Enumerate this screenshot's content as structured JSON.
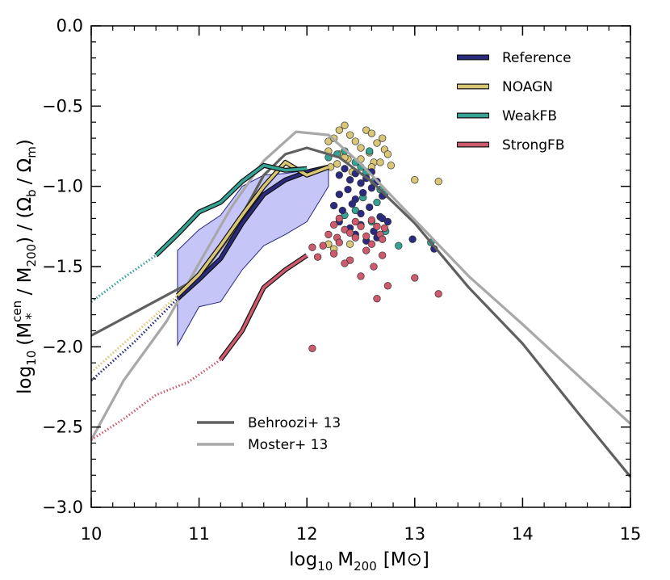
{
  "chart_data": {
    "type": "line",
    "x_axis": {
      "range": [
        10,
        15
      ],
      "ticks": [
        10,
        11,
        12,
        13,
        14,
        15
      ],
      "tick_labels": [
        "10",
        "11",
        "12",
        "13",
        "14",
        "15"
      ],
      "label_parts": {
        "base": "log",
        "base_sub": "10",
        "var": "M",
        "var_sub": "200",
        "unit": "[M",
        "unit_symbol": "⊙",
        "unit_close": "]"
      }
    },
    "y_axis": {
      "range": [
        -3.0,
        0.0
      ],
      "ticks": [
        -3.0,
        -2.5,
        -2.0,
        -1.5,
        -1.0,
        -0.5,
        0.0
      ],
      "tick_labels": [
        "−3.0",
        "−2.5",
        "−2.0",
        "−1.5",
        "−1.0",
        "−0.5",
        "0.0"
      ],
      "label_parts": {
        "open": "log",
        "open_sub": "10",
        "p1": "(M",
        "p1_sup": "cen",
        "p1_sub": "*",
        "p2": "/ M",
        "p2_sub": "200",
        "p3": ") / (Ω",
        "p3_sub": "b",
        "p4": "/ Ω",
        "p4_sub": "m",
        "p5": ")"
      }
    },
    "legend_top_right": [
      {
        "name": "Reference",
        "color": "#2a2a7e"
      },
      {
        "name": "NOAGN",
        "color": "#d9c677"
      },
      {
        "name": "WeakFB",
        "color": "#35a294"
      },
      {
        "name": "StrongFB",
        "color": "#cd5a6d"
      }
    ],
    "legend_bottom_left": [
      {
        "name": "Behroozi+ 13",
        "color": "#606060"
      },
      {
        "name": "Moster+ 13",
        "color": "#a8a8a8"
      }
    ],
    "shaded_band": {
      "color": "#8c8cf0",
      "x": [
        10.8,
        11.0,
        11.2,
        11.4,
        11.6,
        11.8,
        12.0,
        12.2
      ],
      "upper": [
        -1.4,
        -1.27,
        -1.18,
        -1.0,
        -0.93,
        -0.92,
        -0.9,
        -0.88
      ],
      "lower": [
        -1.99,
        -1.75,
        -1.72,
        -1.52,
        -1.37,
        -1.3,
        -1.22,
        -1.0
      ]
    },
    "series": [
      {
        "name": "Behroozi+ 13",
        "color": "#606060",
        "style": "solid",
        "x": [
          10.0,
          10.5,
          11.0,
          11.3,
          11.6,
          11.8,
          12.0,
          12.3,
          12.6,
          13.0,
          13.5,
          14.0,
          14.5,
          15.0
        ],
        "y": [
          -1.93,
          -1.75,
          -1.57,
          -1.3,
          -0.93,
          -0.8,
          -0.76,
          -0.82,
          -0.97,
          -1.23,
          -1.63,
          -1.98,
          -2.4,
          -2.81
        ]
      },
      {
        "name": "Moster+ 13",
        "color": "#a8a8a8",
        "style": "solid",
        "x": [
          10.0,
          10.3,
          10.7,
          11.0,
          11.3,
          11.6,
          11.9,
          12.2,
          12.5,
          13.0,
          13.5,
          14.0,
          14.5,
          15.0
        ],
        "y": [
          -2.58,
          -2.21,
          -1.84,
          -1.48,
          -1.13,
          -0.84,
          -0.66,
          -0.68,
          -0.86,
          -1.21,
          -1.56,
          -1.86,
          -2.17,
          -2.48
        ]
      },
      {
        "name": "Reference",
        "color": "#2a2a7e",
        "style": "solid",
        "x": [
          10.8,
          11.0,
          11.2,
          11.4,
          11.6,
          11.8,
          12.0,
          12.2
        ],
        "y": [
          -1.7,
          -1.58,
          -1.45,
          -1.23,
          -1.05,
          -0.96,
          -0.91,
          -0.88
        ]
      },
      {
        "name": "NOAGN",
        "color": "#d9c677",
        "style": "solid",
        "x": [
          10.8,
          11.0,
          11.2,
          11.4,
          11.6,
          11.8,
          12.0,
          12.2
        ],
        "y": [
          -1.68,
          -1.55,
          -1.37,
          -1.18,
          -1.0,
          -0.85,
          -0.93,
          -0.88
        ]
      },
      {
        "name": "WeakFB",
        "color": "#35a294",
        "style": "solid",
        "x": [
          10.6,
          10.8,
          11.0,
          11.2,
          11.4,
          11.6,
          11.8,
          12.0
        ],
        "y": [
          -1.43,
          -1.3,
          -1.16,
          -1.1,
          -0.97,
          -0.87,
          -0.9,
          -0.89
        ]
      },
      {
        "name": "StrongFB",
        "color": "#cd5a6d",
        "style": "solid",
        "x": [
          11.2,
          11.4,
          11.6,
          11.8,
          12.0
        ],
        "y": [
          -2.08,
          -1.9,
          -1.63,
          -1.52,
          -1.43
        ]
      },
      {
        "name": "Reference",
        "color": "#2a2a7e",
        "style": "dotted",
        "x": [
          10.0,
          10.4,
          10.8
        ],
        "y": [
          -2.21,
          -1.97,
          -1.7
        ]
      },
      {
        "name": "NOAGN",
        "color": "#d9c677",
        "style": "dotted",
        "x": [
          10.0,
          10.4,
          10.8
        ],
        "y": [
          -2.16,
          -1.92,
          -1.68
        ]
      },
      {
        "name": "WeakFB",
        "color": "#35a294",
        "style": "dotted",
        "x": [
          10.0,
          10.3,
          10.6
        ],
        "y": [
          -1.72,
          -1.57,
          -1.43
        ]
      },
      {
        "name": "StrongFB",
        "color": "#cd5a6d",
        "style": "dotted",
        "x": [
          10.0,
          10.3,
          10.6,
          10.9,
          11.2
        ],
        "y": [
          -2.58,
          -2.45,
          -2.3,
          -2.22,
          -2.08
        ]
      }
    ],
    "scatter": [
      {
        "name": "NOAGN",
        "color": "#d9c677",
        "x": [
          12.2,
          12.25,
          12.3,
          12.35,
          12.4,
          12.45,
          12.55,
          12.6,
          12.5,
          12.65,
          12.7,
          12.72,
          12.2,
          12.3,
          12.38,
          12.5,
          12.58,
          12.62,
          12.68,
          12.75,
          12.78,
          12.22,
          12.28,
          12.35,
          12.42,
          12.55,
          12.6,
          13.0,
          13.22,
          12.4,
          12.25,
          12.2
        ],
        "y": [
          -0.72,
          -0.7,
          -0.65,
          -0.62,
          -0.68,
          -0.72,
          -0.65,
          -0.67,
          -0.76,
          -0.73,
          -0.7,
          -0.77,
          -0.78,
          -0.8,
          -0.83,
          -0.83,
          -0.79,
          -0.85,
          -0.85,
          -0.8,
          -0.87,
          -0.88,
          -0.86,
          -0.82,
          -0.91,
          -0.92,
          -0.88,
          -0.96,
          -0.97,
          -1.36,
          -1.39,
          -1.36
        ]
      },
      {
        "name": "WeakFB",
        "color": "#35a294",
        "x": [
          12.2,
          12.28,
          12.35,
          12.45,
          12.5,
          12.55,
          12.58,
          12.62,
          12.68,
          12.72,
          12.52,
          12.65,
          12.35,
          12.45,
          12.6,
          12.73,
          12.85,
          13.15
        ],
        "y": [
          -0.82,
          -0.8,
          -0.78,
          -0.85,
          -0.88,
          -0.91,
          -0.78,
          -0.97,
          -1.02,
          -1.05,
          -1.07,
          -1.1,
          -1.18,
          -1.15,
          -1.22,
          -1.28,
          -1.37,
          -1.35
        ]
      },
      {
        "name": "Reference",
        "color": "#2a2a7e",
        "x": [
          12.3,
          12.35,
          12.4,
          12.45,
          12.5,
          12.55,
          12.6,
          12.65,
          12.3,
          12.38,
          12.45,
          12.52,
          12.6,
          12.7,
          12.25,
          12.33,
          12.42,
          12.5,
          12.58,
          12.68,
          12.75,
          12.3,
          12.4,
          12.5,
          12.62,
          12.7,
          12.45,
          12.55,
          12.65,
          12.98,
          13.18
        ],
        "y": [
          -0.93,
          -0.89,
          -0.96,
          -0.92,
          -0.98,
          -0.95,
          -0.91,
          -0.97,
          -1.05,
          -1.02,
          -1.08,
          -1.04,
          -1.01,
          -1.06,
          -1.12,
          -1.15,
          -1.11,
          -1.17,
          -1.13,
          -1.19,
          -1.22,
          -1.22,
          -1.26,
          -1.24,
          -1.28,
          -1.2,
          -1.3,
          -1.34,
          -1.32,
          -1.33,
          -1.39
        ]
      },
      {
        "name": "StrongFB",
        "color": "#cd5a6d",
        "x": [
          12.3,
          12.45,
          12.6,
          12.25,
          12.35,
          12.5,
          12.65,
          12.72,
          12.2,
          12.28,
          12.4,
          12.55,
          12.68,
          12.3,
          12.45,
          12.6,
          12.7,
          12.05,
          12.15,
          12.25,
          12.4,
          12.55,
          12.7,
          12.1,
          12.35,
          12.62,
          12.5,
          12.75,
          12.65,
          13.0,
          13.22,
          12.05
        ],
        "y": [
          -1.2,
          -1.22,
          -1.21,
          -1.24,
          -1.27,
          -1.25,
          -1.25,
          -1.26,
          -1.3,
          -1.32,
          -1.29,
          -1.31,
          -1.3,
          -1.35,
          -1.32,
          -1.36,
          -1.33,
          -1.38,
          -1.37,
          -1.42,
          -1.46,
          -1.4,
          -1.43,
          -1.44,
          -1.48,
          -1.5,
          -1.56,
          -1.62,
          -1.7,
          -1.57,
          -1.67,
          -2.01
        ]
      }
    ]
  }
}
